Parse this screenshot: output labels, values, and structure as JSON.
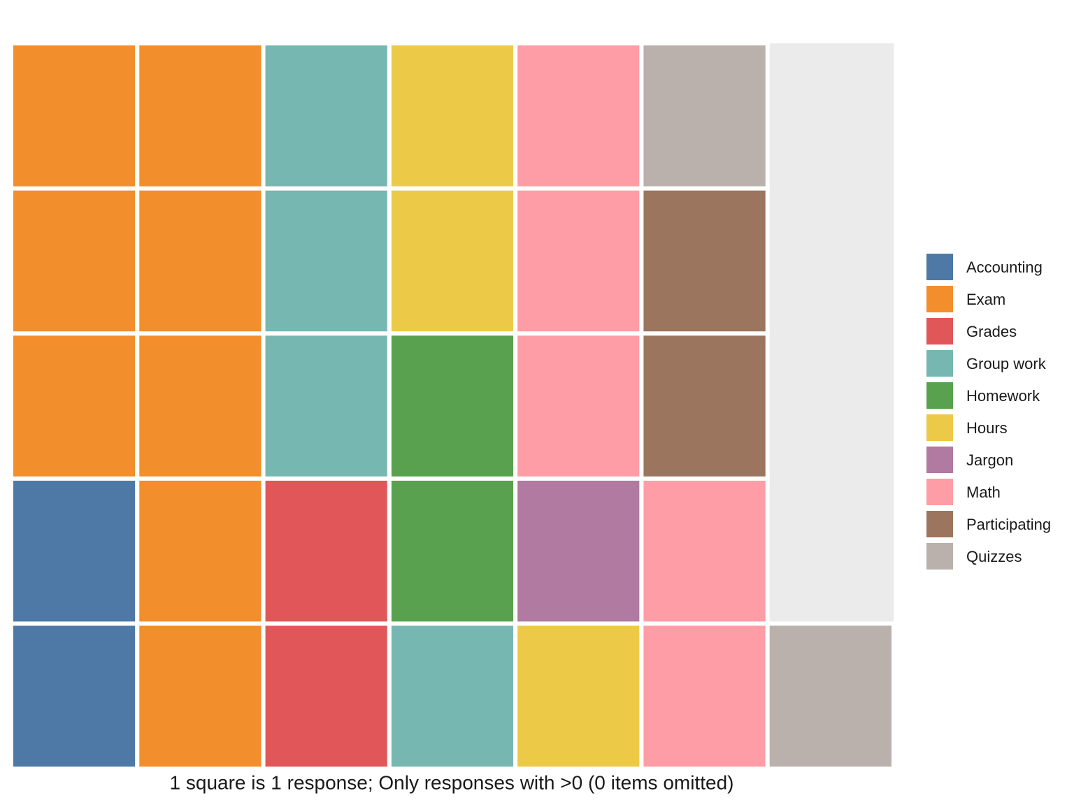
{
  "chart_data": {
    "type": "waffle",
    "caption": "1 square is 1 response; Only responses with >0 (0 items omitted)",
    "categories": [
      "Accounting",
      "Exam",
      "Grades",
      "Group work",
      "Homework",
      "Hours",
      "Jargon",
      "Math",
      "Participating",
      "Quizzes"
    ],
    "values": [
      2,
      8,
      2,
      4,
      2,
      3,
      1,
      5,
      2,
      2
    ],
    "colors": [
      "#4e79a7",
      "#f28e2b",
      "#e15759",
      "#76b7b2",
      "#59a14f",
      "#edc948",
      "#b07aa1",
      "#ff9da7",
      "#9c755f",
      "#bab0ac"
    ]
  }
}
